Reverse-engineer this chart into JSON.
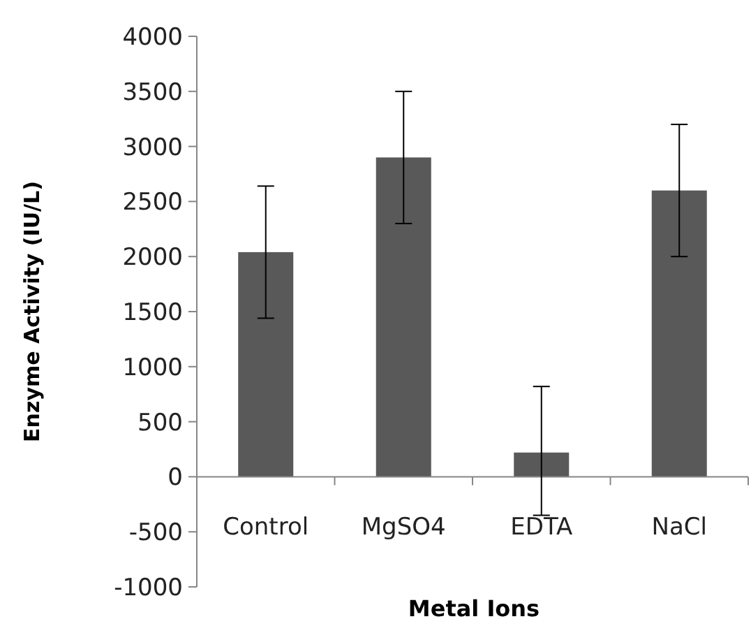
{
  "chart_data": {
    "type": "bar",
    "xlabel": "Metal Ions",
    "ylabel": "Enzyme Activity (IU/L)",
    "categories": [
      "Control",
      "MgSO4",
      "EDTA",
      "NaCl"
    ],
    "values": [
      2040,
      2900,
      220,
      2600
    ],
    "errors": [
      600,
      600,
      [
        -350,
        820
      ],
      600
    ],
    "color": "#595959",
    "ylim": [
      -1000,
      4000
    ],
    "yticks": [
      -1000,
      -500,
      0,
      500,
      1000,
      1500,
      2000,
      2500,
      3000,
      3500,
      4000
    ],
    "grid": false
  }
}
